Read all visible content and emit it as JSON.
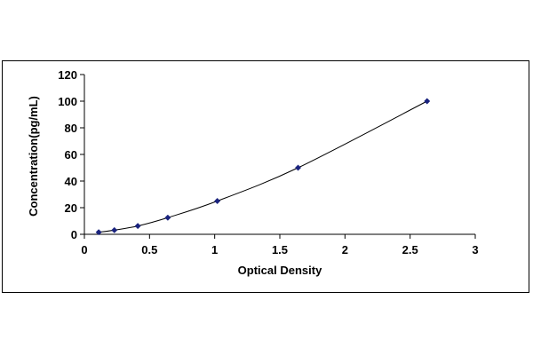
{
  "chart_data": {
    "type": "scatter",
    "title": "",
    "xlabel": "Optical Density",
    "ylabel": "Concentration(pg/mL)",
    "xlim": [
      0,
      3
    ],
    "ylim": [
      0,
      120
    ],
    "x_ticks": [
      0,
      0.5,
      1,
      1.5,
      2,
      2.5,
      3
    ],
    "x_tick_labels": [
      "0",
      "0.5",
      "1",
      "1.5",
      "2",
      "2.5",
      "3"
    ],
    "y_ticks": [
      0,
      20,
      40,
      60,
      80,
      100,
      120
    ],
    "y_tick_labels": [
      "0",
      "20",
      "40",
      "60",
      "80",
      "100",
      "120"
    ],
    "grid": false,
    "legend": "none",
    "trendline": true,
    "series": [
      {
        "x": [
          0.11,
          0.23,
          0.41,
          0.64,
          1.02,
          1.64,
          2.63
        ],
        "y": [
          1.56,
          3.12,
          6.25,
          12.5,
          25,
          50,
          100
        ]
      }
    ],
    "colors": {
      "marker": "#1a237e",
      "line": "#000000"
    }
  }
}
